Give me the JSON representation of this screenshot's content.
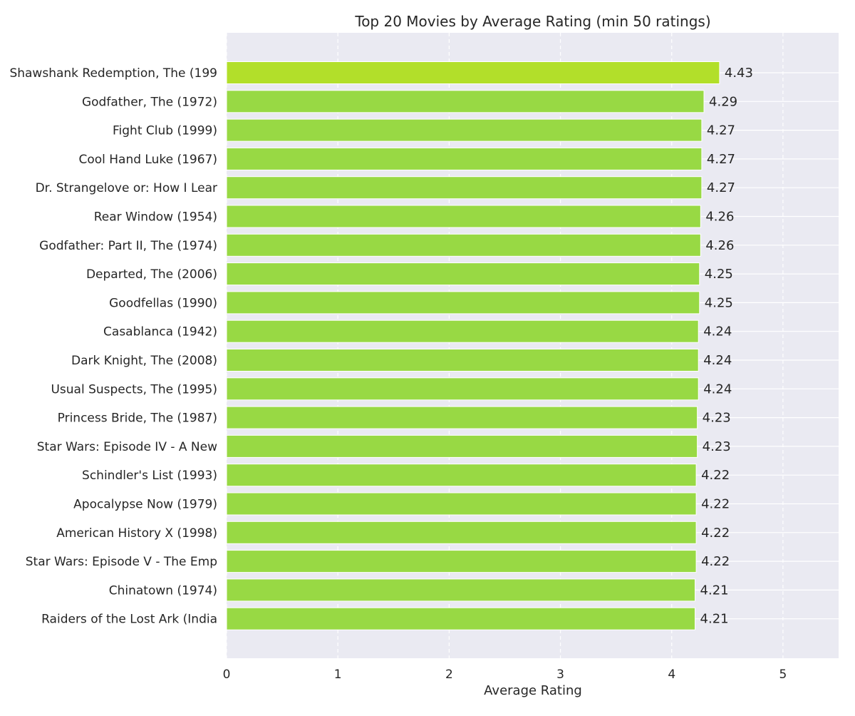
{
  "chart_data": {
    "type": "bar",
    "orientation": "horizontal",
    "title": "Top 20 Movies by Average Rating (min 50 ratings)",
    "xlabel": "Average Rating",
    "ylabel": "",
    "xlim": [
      0,
      5.5
    ],
    "xticks": [
      0,
      1,
      2,
      3,
      4,
      5
    ],
    "grid": true,
    "legend": "none",
    "categories": [
      "Shawshank Redemption, The (199",
      "Godfather, The (1972)",
      "Fight Club (1999)",
      "Cool Hand Luke (1967)",
      "Dr. Strangelove or: How I Lear",
      "Rear Window (1954)",
      "Godfather: Part II, The (1974)",
      "Departed, The (2006)",
      "Goodfellas (1990)",
      "Casablanca (1942)",
      "Dark Knight, The (2008)",
      "Usual Suspects, The (1995)",
      "Princess Bride, The (1987)",
      "Star Wars: Episode IV - A New ",
      "Schindler's List (1993)",
      "Apocalypse Now (1979)",
      "American History X (1998)",
      "Star Wars: Episode V - The Emp",
      "Chinatown (1974)",
      "Raiders of the Lost Ark (India"
    ],
    "values": [
      4.43,
      4.29,
      4.27,
      4.27,
      4.27,
      4.26,
      4.26,
      4.25,
      4.25,
      4.24,
      4.24,
      4.24,
      4.23,
      4.23,
      4.22,
      4.22,
      4.22,
      4.22,
      4.21,
      4.21
    ],
    "value_labels": [
      "4.43",
      "4.29",
      "4.27",
      "4.27",
      "4.27",
      "4.26",
      "4.26",
      "4.25",
      "4.25",
      "4.24",
      "4.24",
      "4.24",
      "4.23",
      "4.23",
      "4.22",
      "4.22",
      "4.22",
      "4.22",
      "4.21",
      "4.21"
    ],
    "colors": {
      "background": "#eaeaf2",
      "top_bar": "#b2df2a",
      "bar": "#98d944"
    }
  }
}
